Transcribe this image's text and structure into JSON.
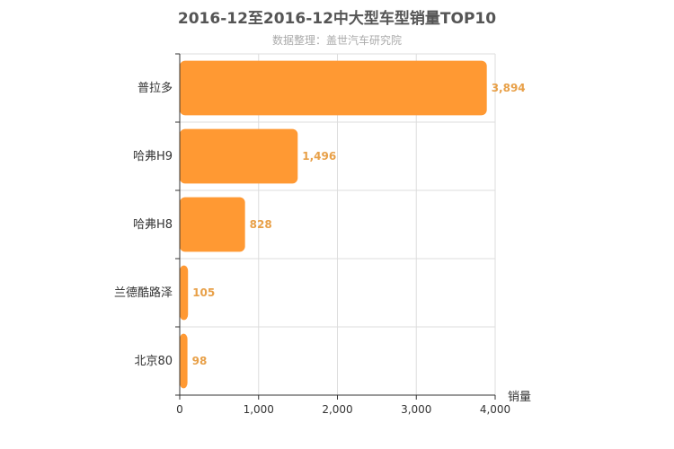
{
  "chart_data": {
    "type": "bar",
    "orientation": "horizontal",
    "title": "2016-12至2016-12中大型车型销量TOP10",
    "subtitle": "数据整理：盖世汽车研究院",
    "categories": [
      "普拉多",
      "哈弗H9",
      "哈弗H8",
      "兰德酷路泽",
      "北京80"
    ],
    "values": [
      3894,
      1496,
      828,
      105,
      98
    ],
    "value_labels": [
      "3,894",
      "1,496",
      "828",
      "105",
      "98"
    ],
    "xlabel": "销量",
    "ylabel": "",
    "xlim": [
      0,
      4000
    ],
    "ticks": [
      0,
      1000,
      2000,
      3000,
      4000
    ],
    "tick_labels": [
      "0",
      "1,000",
      "2,000",
      "3,000",
      "4,000"
    ],
    "grid": true,
    "colors": {
      "bar": "#FF9933",
      "value_label": "#E8A048",
      "grid": "#dddddd",
      "axis": "#333333"
    }
  }
}
